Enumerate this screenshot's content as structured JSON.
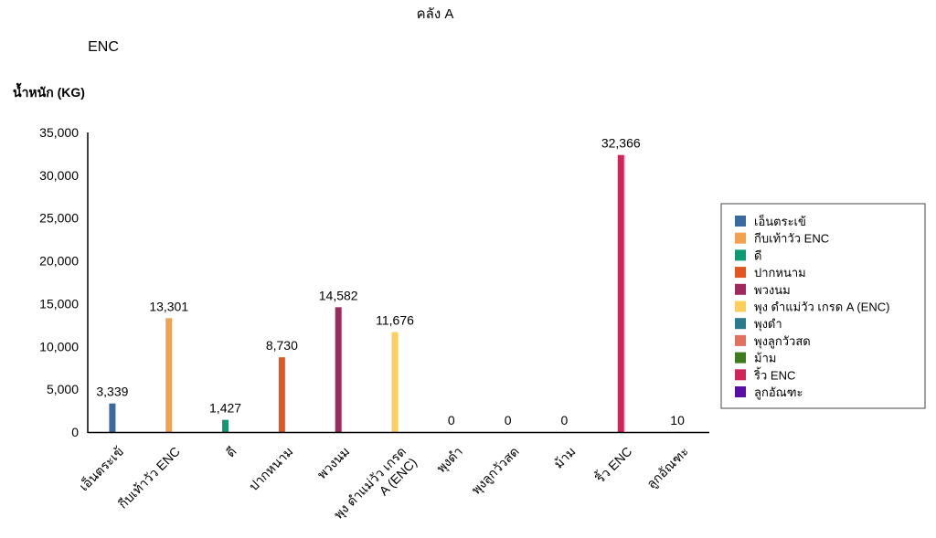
{
  "chart_data": {
    "type": "bar",
    "title": "คลัง A",
    "subtitle": "ENC",
    "xlabel": "",
    "ylabel": "น้ำหนัก (KG)",
    "ylim": [
      0,
      35000
    ],
    "yticks": [
      0,
      5000,
      10000,
      15000,
      20000,
      25000,
      30000,
      35000
    ],
    "ytick_labels": [
      "0",
      "5,000",
      "10,000",
      "15,000",
      "20,000",
      "25,000",
      "30,000",
      "35,000"
    ],
    "grid": false,
    "legend_position": "right",
    "categories": [
      "เอ็นตระเข้",
      "กีบเท้าวัว ENC",
      "ดี",
      "ปากหนาม",
      "พวงนม",
      "พุง ดำแม่วัว เกรด A  (ENC)",
      "พุงดำ",
      "พุงลูกวัวสด",
      "ม้าม",
      "ริ้ว ENC",
      "ลูกอัณฑะ"
    ],
    "category_label_lines": [
      [
        "เอ็นตระเข้"
      ],
      [
        "กีบเท้าวัว ENC"
      ],
      [
        "ดี"
      ],
      [
        "ปากหนาม"
      ],
      [
        "พวงนม"
      ],
      [
        "พุง ดำแม่วัว เกรด",
        "A  (ENC)"
      ],
      [
        "พุงดำ"
      ],
      [
        "พุงลูกวัวสด"
      ],
      [
        "ม้าม"
      ],
      [
        "ริ้ว ENC"
      ],
      [
        "ลูกอัณฑะ"
      ]
    ],
    "values": [
      3339,
      13301,
      1427,
      8730,
      14582,
      11676,
      0,
      0,
      0,
      32366,
      10
    ],
    "data_labels": [
      "3,339",
      "13,301",
      "1,427",
      "8,730",
      "14,582",
      "11,676",
      "0",
      "0",
      "0",
      "32,366",
      "10"
    ],
    "colors": [
      "#3b6aa0",
      "#f3a04f",
      "#0e9a72",
      "#e2561f",
      "#a0285e",
      "#fccf5c",
      "#2a798c",
      "#e0705f",
      "#3e7b1e",
      "#d1245b",
      "#5a0ea8"
    ]
  }
}
